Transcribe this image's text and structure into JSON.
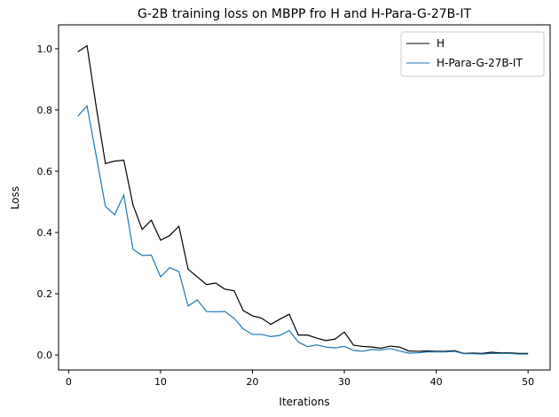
{
  "chart_data": {
    "type": "line",
    "title": "G-2B training loss on MBPP fro H and H-Para-G-27B-IT",
    "xlabel": "Iterations",
    "ylabel": "Loss",
    "xlim": [
      -1.1,
      52.4
    ],
    "ylim": [
      -0.049,
      1.078
    ],
    "xticks": [
      0,
      10,
      20,
      30,
      40,
      50
    ],
    "yticks": [
      0.0,
      0.2,
      0.4,
      0.6,
      0.8,
      1.0
    ],
    "xtick_labels": [
      "0",
      "10",
      "20",
      "30",
      "40",
      "50"
    ],
    "ytick_labels": [
      "0.0",
      "0.2",
      "0.4",
      "0.6",
      "0.8",
      "1.0"
    ],
    "grid": false,
    "legend_position": "top-right",
    "x": [
      1,
      2,
      3,
      4,
      5,
      6,
      7,
      8,
      9,
      10,
      11,
      12,
      13,
      14,
      15,
      16,
      17,
      18,
      19,
      20,
      21,
      22,
      23,
      24,
      25,
      26,
      27,
      28,
      29,
      30,
      31,
      32,
      33,
      34,
      35,
      36,
      37,
      38,
      39,
      40,
      41,
      42,
      43,
      44,
      45,
      46,
      47,
      48,
      49,
      50
    ],
    "series": [
      {
        "name": "H",
        "color": "#000000",
        "values": [
          0.99,
          1.01,
          0.81,
          0.625,
          0.633,
          0.636,
          0.49,
          0.41,
          0.44,
          0.375,
          0.39,
          0.42,
          0.28,
          0.255,
          0.23,
          0.235,
          0.215,
          0.21,
          0.145,
          0.128,
          0.12,
          0.1,
          0.117,
          0.133,
          0.065,
          0.065,
          0.055,
          0.047,
          0.052,
          0.075,
          0.032,
          0.028,
          0.026,
          0.022,
          0.029,
          0.026,
          0.013,
          0.012,
          0.013,
          0.012,
          0.012,
          0.014,
          0.005,
          0.006,
          0.005,
          0.009,
          0.007,
          0.007,
          0.005,
          0.005
        ]
      },
      {
        "name": "H-Para-G-27B-IT",
        "color": "#1f77b4",
        "values": [
          0.78,
          0.813,
          0.65,
          0.485,
          0.458,
          0.522,
          0.345,
          0.325,
          0.326,
          0.255,
          0.285,
          0.272,
          0.16,
          0.18,
          0.142,
          0.141,
          0.142,
          0.12,
          0.085,
          0.067,
          0.067,
          0.06,
          0.064,
          0.08,
          0.042,
          0.027,
          0.033,
          0.026,
          0.023,
          0.028,
          0.015,
          0.012,
          0.018,
          0.016,
          0.021,
          0.013,
          0.006,
          0.007,
          0.01,
          0.01,
          0.01,
          0.012,
          0.004,
          0.004,
          0.003,
          0.005,
          0.005,
          0.005,
          0.003,
          0.003
        ]
      }
    ]
  }
}
